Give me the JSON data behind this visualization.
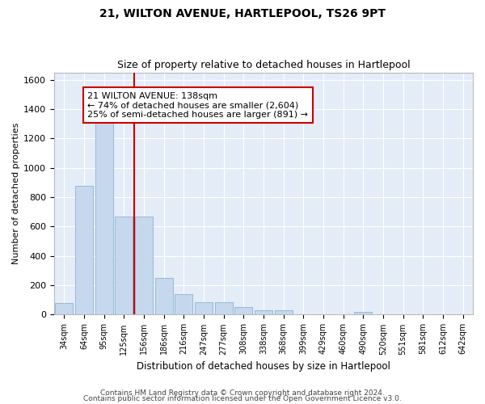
{
  "title": "21, WILTON AVENUE, HARTLEPOOL, TS26 9PT",
  "subtitle": "Size of property relative to detached houses in Hartlepool",
  "xlabel": "Distribution of detached houses by size in Hartlepool",
  "ylabel": "Number of detached properties",
  "footnote1": "Contains HM Land Registry data © Crown copyright and database right 2024.",
  "footnote2": "Contains public sector information licensed under the Open Government Licence v3.0.",
  "categories": [
    "34sqm",
    "64sqm",
    "95sqm",
    "125sqm",
    "156sqm",
    "186sqm",
    "216sqm",
    "247sqm",
    "277sqm",
    "308sqm",
    "338sqm",
    "368sqm",
    "399sqm",
    "429sqm",
    "460sqm",
    "490sqm",
    "520sqm",
    "551sqm",
    "581sqm",
    "612sqm",
    "642sqm"
  ],
  "values": [
    80,
    880,
    1320,
    670,
    670,
    250,
    140,
    85,
    85,
    50,
    28,
    28,
    0,
    0,
    0,
    20,
    0,
    0,
    0,
    0,
    0
  ],
  "bar_color": "#c5d8ed",
  "bar_edge_color": "#7aaad0",
  "plot_bg_color": "#e4ecf7",
  "grid_color": "#ffffff",
  "vline_color": "#cc0000",
  "vline_x": 3.5,
  "annotation_line1": "21 WILTON AVENUE: 138sqm",
  "annotation_line2": "← 74% of detached houses are smaller (2,604)",
  "annotation_line3": "25% of semi-detached houses are larger (891) →",
  "annotation_box_facecolor": "#ffffff",
  "annotation_box_edgecolor": "#cc0000",
  "ylim": [
    0,
    1650
  ],
  "yticks": [
    0,
    200,
    400,
    600,
    800,
    1000,
    1200,
    1400,
    1600
  ],
  "title_fontsize": 10,
  "subtitle_fontsize": 9
}
